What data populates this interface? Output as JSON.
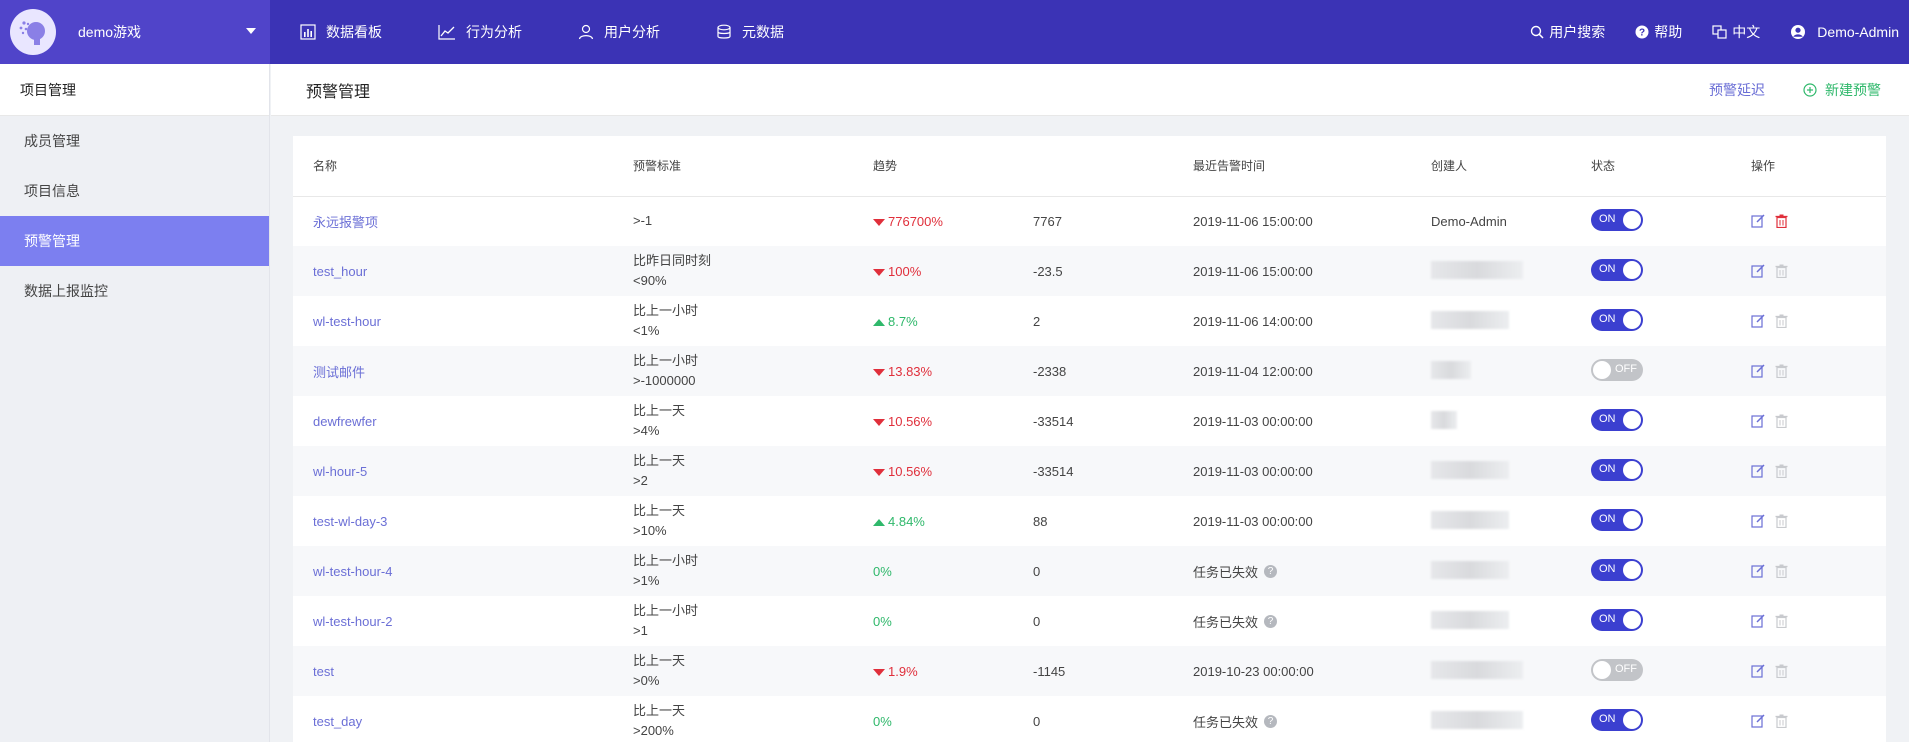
{
  "topbar": {
    "project": "demo游戏",
    "nav": [
      {
        "label": "数据看板",
        "icon": "bar-chart-icon"
      },
      {
        "label": "行为分析",
        "icon": "line-trend-icon"
      },
      {
        "label": "用户分析",
        "icon": "user-icon"
      },
      {
        "label": "元数据",
        "icon": "database-icon"
      }
    ],
    "tools": {
      "search": "用户搜索",
      "help": "帮助",
      "lang": "中文",
      "user": "Demo-Admin"
    }
  },
  "sidebar": {
    "title": "项目管理",
    "items": [
      {
        "label": "成员管理",
        "active": false
      },
      {
        "label": "项目信息",
        "active": false
      },
      {
        "label": "预警管理",
        "active": true
      },
      {
        "label": "数据上报监控",
        "active": false
      }
    ]
  },
  "header": {
    "title": "预警管理",
    "delay_link": "预警延迟",
    "new_link": "新建预警"
  },
  "table": {
    "columns": [
      "名称",
      "预警标准",
      "趋势",
      "",
      "最近告警时间",
      "创建人",
      "状态",
      "操作"
    ],
    "rows": [
      {
        "name": "永远报警项",
        "std1": ">-1",
        "std2": "",
        "trend": "776700%",
        "dir": "down",
        "value": "7767",
        "time": "2019-11-06 15:00:00",
        "expired": false,
        "creator": "Demo-Admin",
        "status": "ON"
      },
      {
        "name": "test_hour",
        "std1": "比昨日同时刻",
        "std2": "<90%",
        "trend": "100%",
        "dir": "down",
        "value": "-23.5",
        "time": "2019-11-06 15:00:00",
        "expired": false,
        "creator": "",
        "status": "ON"
      },
      {
        "name": "wl-test-hour",
        "std1": "比上一小时",
        "std2": "<1%",
        "trend": "8.7%",
        "dir": "up",
        "value": "2",
        "time": "2019-11-06 14:00:00",
        "expired": false,
        "creator": "",
        "status": "ON"
      },
      {
        "name": "测试邮件",
        "std1": "比上一小时",
        "std2": ">-1000000",
        "trend": "13.83%",
        "dir": "down",
        "value": "-2338",
        "time": "2019-11-04 12:00:00",
        "expired": false,
        "creator": "",
        "status": "OFF"
      },
      {
        "name": "dewfrewfer",
        "std1": "比上一天",
        "std2": ">4%",
        "trend": "10.56%",
        "dir": "down",
        "value": "-33514",
        "time": "2019-11-03 00:00:00",
        "expired": false,
        "creator": "",
        "status": "ON"
      },
      {
        "name": "wl-hour-5",
        "std1": "比上一天",
        "std2": ">2",
        "trend": "10.56%",
        "dir": "down",
        "value": "-33514",
        "time": "2019-11-03 00:00:00",
        "expired": false,
        "creator": "",
        "status": "ON"
      },
      {
        "name": "test-wl-day-3",
        "std1": "比上一天",
        "std2": ">10%",
        "trend": "4.84%",
        "dir": "up",
        "value": "88",
        "time": "2019-11-03 00:00:00",
        "expired": false,
        "creator": "",
        "status": "ON"
      },
      {
        "name": "wl-test-hour-4",
        "std1": "比上一小时",
        "std2": ">1%",
        "trend": "0%",
        "dir": "flat",
        "value": "0",
        "time": "任务已失效",
        "expired": true,
        "creator": "",
        "status": "ON"
      },
      {
        "name": "wl-test-hour-2",
        "std1": "比上一小时",
        "std2": ">1",
        "trend": "0%",
        "dir": "flat",
        "value": "0",
        "time": "任务已失效",
        "expired": true,
        "creator": "",
        "status": "ON"
      },
      {
        "name": "test",
        "std1": "比上一天",
        "std2": ">0%",
        "trend": "1.9%",
        "dir": "down",
        "value": "-1145",
        "time": "2019-10-23 00:00:00",
        "expired": false,
        "creator": "",
        "status": "OFF"
      },
      {
        "name": "test_day",
        "std1": "比上一天",
        "std2": ">200%",
        "trend": "0%",
        "dir": "flat",
        "value": "0",
        "time": "任务已失效",
        "expired": true,
        "creator": "",
        "status": "ON"
      }
    ]
  },
  "colors": {
    "topbar": "#3b33b5",
    "accent": "#6b6fd6",
    "toggle_on": "#3b3fd0",
    "down": "#e02f3b",
    "up": "#2fb86b"
  }
}
